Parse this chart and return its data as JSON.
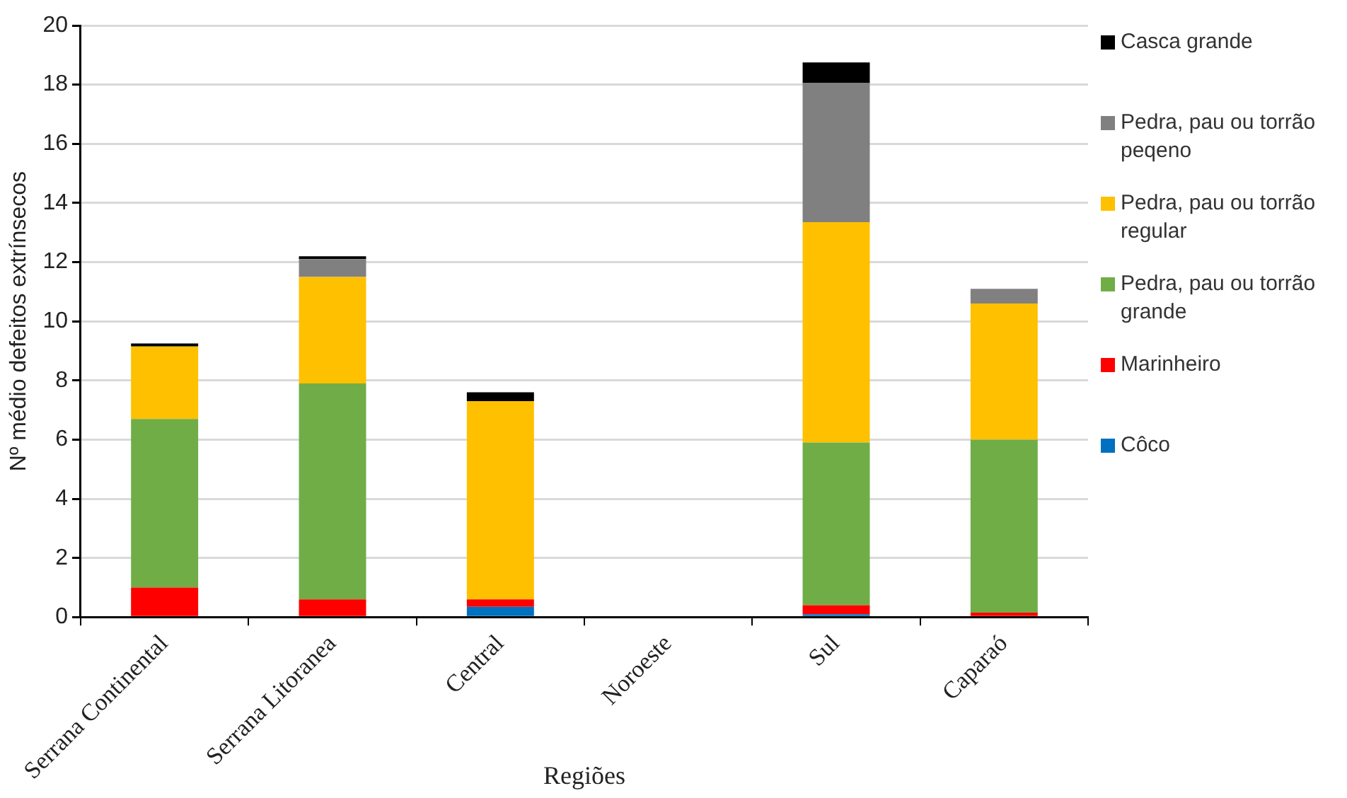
{
  "chart_data": {
    "type": "bar",
    "stacked": true,
    "xlabel": "Regiões",
    "ylabel": "Nº médio defeitos extrínsecos",
    "categories": [
      "Serrana Continental",
      "Serrana Litoranea",
      "Central",
      "Noroeste",
      "Sul",
      "Caparaó"
    ],
    "series": [
      {
        "name": "Côco",
        "color": "#0070c0",
        "values": [
          0,
          0,
          0.35,
          0,
          0.1,
          0
        ]
      },
      {
        "name": "Marinheiro",
        "color": "#ff0000",
        "values": [
          1.0,
          0.6,
          0.25,
          0,
          0.3,
          0.15
        ]
      },
      {
        "name": "Pedra, pau ou torrão grande",
        "color": "#70ad47",
        "values": [
          5.7,
          7.3,
          0,
          0,
          5.5,
          5.85
        ]
      },
      {
        "name": "Pedra, pau ou torrão regular",
        "color": "#ffc000",
        "values": [
          2.45,
          3.6,
          6.7,
          0,
          7.45,
          4.6
        ]
      },
      {
        "name": "Pedra, pau ou torrão peqeno",
        "color": "#808080",
        "values": [
          0,
          0.6,
          0,
          0,
          4.7,
          0.5
        ]
      },
      {
        "name": "Casca grande",
        "color": "#000000",
        "values": [
          0.1,
          0.1,
          0.3,
          0,
          0.7,
          0
        ]
      }
    ],
    "ylim": [
      0,
      20
    ],
    "yticks": [
      0,
      2,
      4,
      6,
      8,
      10,
      12,
      14,
      16,
      18,
      20
    ],
    "grid": "y",
    "legend": "right"
  }
}
